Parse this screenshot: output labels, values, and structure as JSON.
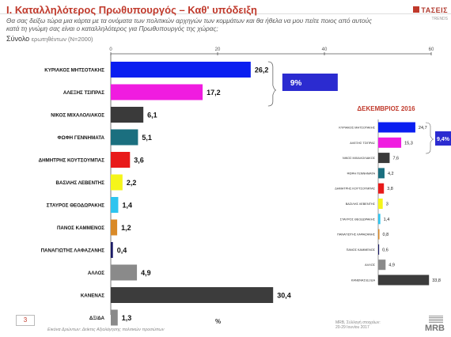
{
  "header": {
    "title_part1": "I. Καταλληλότερος",
    "title_part2": "Πρωθυπουργός – Καθ' υπόδειξη",
    "question": "Θα σας δείξω τώρα μια κάρτα με τα ονόματα των πολιτικών αρχηγών των κομμάτων και θα ήθελα να μου πείτε ποιος από αυτούς κατά τη γνώμη σας είναι ο καταλληλότερος για Πρωθυπουργός της χώρας;",
    "total_label": "Σύνολο",
    "total_sub": "ερωτηθέντων (Ν=2000)"
  },
  "logo": {
    "brand": "ΤΑΣΕΙΣ",
    "sub": "TRENDS"
  },
  "footer": {
    "page": "3",
    "source": "Εικόνα Δρώντων: Δείκτες Αξιολόγησης πολιτικών προσώπων",
    "percent_sign": "%",
    "mrb_note_1": "MRB, Σύλλογή στοιχείων:",
    "mrb_note_2": "20-29 Ιουνίου 2017",
    "mrb": "MRB"
  },
  "chart_data": [
    {
      "type": "bar",
      "orientation": "horizontal",
      "xlim": [
        0,
        60
      ],
      "xticks": [
        "0",
        "20",
        "40",
        "60"
      ],
      "categories": [
        "ΚΥΡΙΑΚΟΣ ΜΗΤΣΟΤΑΚΗΣ",
        "ΑΛΕΞΗΣ ΤΣΙΠΡΑΣ",
        "ΝΙΚΟΣ ΜΙΧΑΛΟΛΙΑΚΟΣ",
        "ΦΩΦΗ ΓΕΝΝΗΜΑΤΑ",
        "ΔΗΜΗΤΡΗΣ ΚΟΥΤΣΟΥΜΠΑΣ",
        "ΒΑΣΙΛΗΣ ΛΕΒΕΝΤΗΣ",
        "ΣΤΑΥΡΟΣ ΘΕΟΔΩΡΑΚΗΣ",
        "ΠΑΝΟΣ ΚΑΜΜΕΝΟΣ",
        "ΠΑΝΑΓΙΩΤΗΣ ΛΑΦΑΖΑΝΗΣ",
        "ΑΛΛΟΣ",
        "ΚΑΝΕΝΑΣ",
        "ΔΞ/ΔΑ"
      ],
      "values": [
        26.2,
        17.2,
        6.1,
        5.1,
        3.6,
        2.2,
        1.4,
        1.2,
        0.4,
        4.9,
        30.4,
        1.3
      ],
      "value_labels": [
        "26,2",
        "17,2",
        "6,1",
        "5,1",
        "3,6",
        "2,2",
        "1,4",
        "1,2",
        "0,4",
        "4,9",
        "30,4",
        "1,3"
      ],
      "colors": [
        "#0a1ef0",
        "#f01ce0",
        "#3a3a3a",
        "#1b6f7f",
        "#e81a1a",
        "#f5f51a",
        "#2ec4ef",
        "#d98a28",
        "#1a1a66",
        "#8a8a8a",
        "#3c3c3c",
        "#8a8a8a"
      ],
      "annotation": "9%"
    },
    {
      "type": "bar",
      "orientation": "horizontal",
      "title": "ΔΕΚΕΜΒΡΙΟΣ 2016",
      "categories": [
        "ΚΥΡΙΑΚΟΣ ΜΗΤΣΟΤΑΚΗΣ",
        "ΑΛΕΞΗΣ ΤΣΙΠΡΑΣ",
        "ΝΙΚΟΣ ΜΙΧΑΛΟΛΙΑΚΟΣ",
        "ΦΩΦΗ ΓΕΝΝΗΜΑΤΑ",
        "ΔΗΜΗΤΡΗΣ ΚΟΥΤΣΟΥΜΠΑΣ",
        "ΒΑΣΙΛΗΣ ΛΕΒΕΝΤΗΣ",
        "ΣΤΑΥΡΟΣ ΘΕΟΔΩΡΑΚΗΣ",
        "ΠΑΝΑΓΙΩΤΗΣ ΛΑΦΑΖΑΝΗΣ",
        "ΠΑΝΟΣ ΚΑΜΜΕΝΟΣ",
        "ΑΛΛΟΣ",
        "ΚΑΝΕΝΑΣ/ΔΞ/ΔΑ"
      ],
      "values": [
        24.7,
        15.3,
        7.6,
        4.2,
        3.8,
        3.0,
        1.4,
        0.8,
        0.6,
        4.9,
        33.8
      ],
      "value_labels": [
        "24,7",
        "15,3",
        "7,6",
        "4,2",
        "3,8",
        "3",
        "1,4",
        "0,8",
        "0,6",
        "4,9",
        "33,8"
      ],
      "colors": [
        "#0a1ef0",
        "#f01ce0",
        "#3a3a3a",
        "#1b6f7f",
        "#e81a1a",
        "#f5f51a",
        "#2ec4ef",
        "#d98a28",
        "#1a1a66",
        "#8a8a8a",
        "#3c3c3c"
      ],
      "annotation": "9,4%"
    }
  ]
}
